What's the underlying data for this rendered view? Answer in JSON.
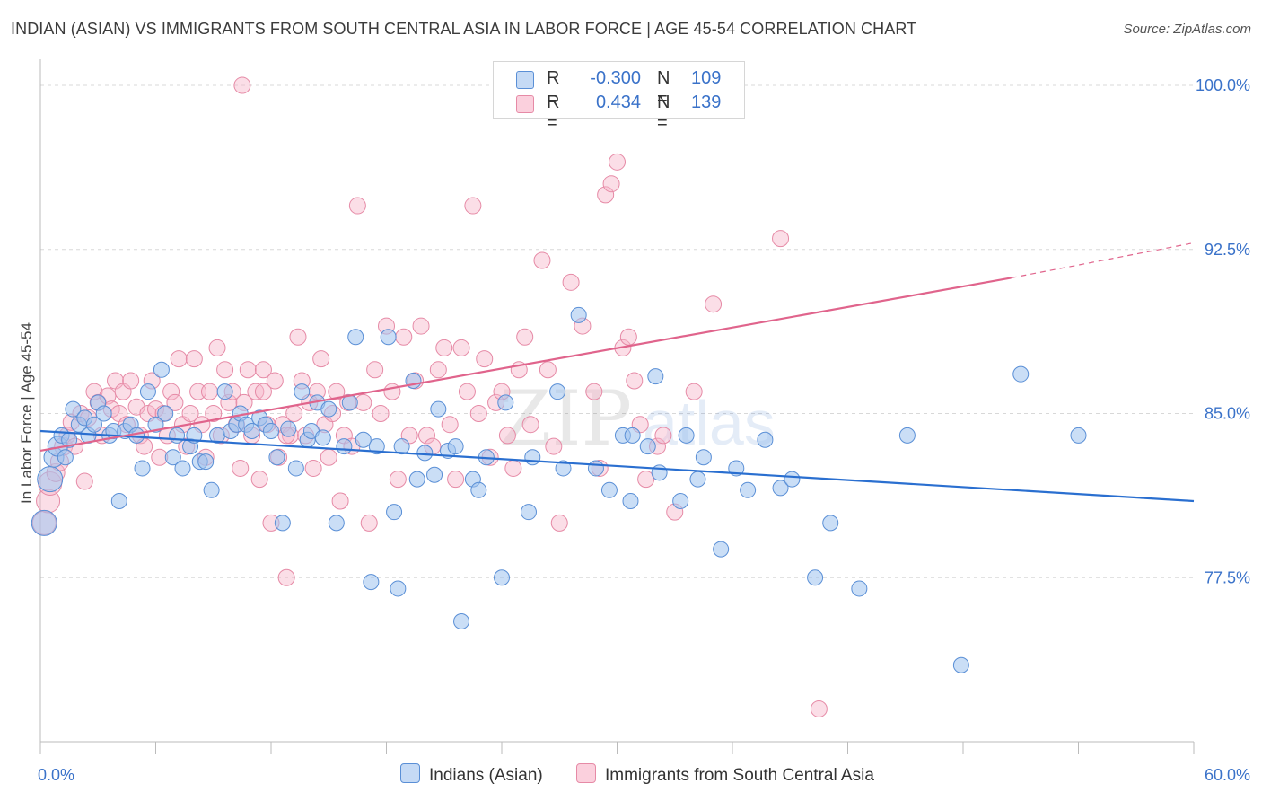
{
  "header": {
    "title": "INDIAN (ASIAN) VS IMMIGRANTS FROM SOUTH CENTRAL ASIA IN LABOR FORCE | AGE 45-54 CORRELATION CHART",
    "source": "Source: ZipAtlas.com"
  },
  "watermark": {
    "part1": "ZIP",
    "part2": "atlas"
  },
  "legend": {
    "series1": {
      "r_label": "R =",
      "r_value": "-0.300",
      "n_label": "N =",
      "n_value": "109"
    },
    "series2": {
      "r_label": "R =",
      "r_value": "0.434",
      "n_label": "N =",
      "n_value": "139"
    }
  },
  "bottom_legend": {
    "series1": "Indians (Asian)",
    "series2": "Immigrants from South Central Asia"
  },
  "colors": {
    "blue_fill": "#9fc3ef",
    "blue_stroke": "#5a8fd6",
    "blue_line": "#2a6fd0",
    "pink_fill": "#f6b6c9",
    "pink_stroke": "#e68aa6",
    "pink_line": "#e0648c",
    "tick_text": "#3a72c9",
    "grid": "#d8d8d8"
  },
  "chart_data": {
    "type": "scatter",
    "title": "INDIAN (ASIAN) VS IMMIGRANTS FROM SOUTH CENTRAL ASIA IN LABOR FORCE | AGE 45-54 CORRELATION CHART",
    "xlabel": "",
    "ylabel": "In Labor Force | Age 45-54",
    "x_tick_labels": [
      "0.0%",
      "60.0%"
    ],
    "y_tick_labels": [
      "77.5%",
      "85.0%",
      "92.5%",
      "100.0%"
    ],
    "y_ticks": [
      77.5,
      85.0,
      92.5,
      100.0
    ],
    "xlim": [
      0,
      60
    ],
    "ylim": [
      70,
      100.7
    ],
    "grid": "horizontal dashed",
    "legend_position": "top-center",
    "series": [
      {
        "name": "Indians (Asian)",
        "color": "#9fc3ef",
        "trend": {
          "x": [
            0,
            60
          ],
          "y": [
            84.2,
            81.0
          ]
        },
        "points": [
          [
            0.2,
            80.0
          ],
          [
            0.5,
            82.0
          ],
          [
            0.7,
            83.0
          ],
          [
            0.9,
            83.5
          ],
          [
            1.1,
            84.0
          ],
          [
            1.3,
            83.0
          ],
          [
            1.5,
            83.8
          ],
          [
            1.7,
            85.2
          ],
          [
            2.0,
            84.5
          ],
          [
            2.3,
            84.8
          ],
          [
            2.5,
            84.0
          ],
          [
            2.8,
            84.5
          ],
          [
            3.0,
            85.5
          ],
          [
            3.3,
            85.0
          ],
          [
            3.6,
            84.0
          ],
          [
            3.8,
            84.2
          ],
          [
            4.1,
            81.0
          ],
          [
            4.4,
            84.2
          ],
          [
            4.7,
            84.5
          ],
          [
            5.0,
            84.0
          ],
          [
            5.3,
            82.5
          ],
          [
            5.6,
            86.0
          ],
          [
            6.0,
            84.5
          ],
          [
            6.3,
            87.0
          ],
          [
            6.5,
            85.0
          ],
          [
            6.9,
            83.0
          ],
          [
            7.1,
            84.0
          ],
          [
            7.4,
            82.5
          ],
          [
            7.8,
            83.5
          ],
          [
            8.0,
            84.0
          ],
          [
            8.3,
            82.8
          ],
          [
            8.6,
            82.8
          ],
          [
            8.9,
            81.5
          ],
          [
            9.2,
            84.0
          ],
          [
            9.6,
            86.0
          ],
          [
            9.9,
            84.2
          ],
          [
            10.2,
            84.5
          ],
          [
            10.4,
            85.0
          ],
          [
            10.7,
            84.5
          ],
          [
            11.0,
            84.2
          ],
          [
            11.4,
            84.8
          ],
          [
            11.7,
            84.5
          ],
          [
            12.0,
            84.2
          ],
          [
            12.3,
            83.0
          ],
          [
            12.6,
            80.0
          ],
          [
            12.9,
            84.3
          ],
          [
            13.3,
            82.5
          ],
          [
            13.6,
            86.0
          ],
          [
            13.9,
            83.8
          ],
          [
            14.1,
            84.2
          ],
          [
            14.4,
            85.5
          ],
          [
            14.7,
            83.9
          ],
          [
            15.0,
            85.2
          ],
          [
            15.4,
            80.0
          ],
          [
            15.8,
            83.5
          ],
          [
            16.1,
            85.5
          ],
          [
            16.4,
            88.5
          ],
          [
            16.8,
            83.8
          ],
          [
            17.2,
            77.3
          ],
          [
            17.5,
            83.5
          ],
          [
            18.1,
            88.5
          ],
          [
            18.4,
            80.5
          ],
          [
            18.6,
            77.0
          ],
          [
            18.8,
            83.5
          ],
          [
            19.4,
            86.5
          ],
          [
            19.6,
            82.0
          ],
          [
            20.0,
            83.2
          ],
          [
            20.5,
            82.2
          ],
          [
            20.7,
            85.2
          ],
          [
            21.2,
            83.3
          ],
          [
            21.6,
            83.5
          ],
          [
            21.9,
            75.5
          ],
          [
            22.5,
            82.0
          ],
          [
            22.8,
            81.5
          ],
          [
            23.2,
            83.0
          ],
          [
            24.0,
            77.5
          ],
          [
            24.2,
            85.5
          ],
          [
            25.4,
            80.5
          ],
          [
            25.6,
            83.0
          ],
          [
            26.9,
            86.0
          ],
          [
            27.2,
            82.5
          ],
          [
            28.0,
            89.5
          ],
          [
            28.9,
            82.5
          ],
          [
            29.6,
            81.5
          ],
          [
            30.3,
            84.0
          ],
          [
            30.7,
            81.0
          ],
          [
            30.8,
            84.0
          ],
          [
            31.6,
            83.5
          ],
          [
            32.0,
            86.7
          ],
          [
            32.2,
            82.3
          ],
          [
            33.3,
            81.0
          ],
          [
            33.6,
            84.0
          ],
          [
            34.2,
            82.0
          ],
          [
            34.5,
            83.0
          ],
          [
            35.4,
            78.8
          ],
          [
            36.2,
            82.5
          ],
          [
            36.8,
            81.5
          ],
          [
            37.7,
            83.8
          ],
          [
            38.5,
            81.6
          ],
          [
            39.1,
            82.0
          ],
          [
            40.3,
            77.5
          ],
          [
            41.1,
            80.0
          ],
          [
            42.6,
            77.0
          ],
          [
            45.1,
            84.0
          ],
          [
            47.9,
            73.5
          ],
          [
            51.0,
            86.8
          ],
          [
            54.0,
            84.0
          ]
        ]
      },
      {
        "name": "Immigrants from South Central Asia",
        "color": "#f6b6c9",
        "trend": {
          "x": [
            0,
            50.5
          ],
          "y": [
            83.3,
            91.2
          ]
        },
        "trend_dashed": {
          "x": [
            50.5,
            60
          ],
          "y": [
            91.2,
            92.8
          ]
        },
        "points": [
          [
            0.2,
            80.0
          ],
          [
            0.4,
            81.0
          ],
          [
            0.5,
            81.8
          ],
          [
            0.8,
            82.3
          ],
          [
            1.0,
            82.8
          ],
          [
            1.2,
            83.5
          ],
          [
            1.4,
            84.0
          ],
          [
            1.6,
            84.6
          ],
          [
            1.8,
            83.5
          ],
          [
            2.1,
            85.0
          ],
          [
            2.3,
            81.9
          ],
          [
            2.5,
            84.8
          ],
          [
            2.8,
            86.0
          ],
          [
            3.0,
            85.5
          ],
          [
            3.2,
            84.0
          ],
          [
            3.5,
            85.8
          ],
          [
            3.7,
            85.2
          ],
          [
            3.9,
            86.5
          ],
          [
            4.1,
            85.0
          ],
          [
            4.3,
            86.0
          ],
          [
            4.5,
            84.5
          ],
          [
            4.7,
            86.5
          ],
          [
            5.0,
            85.3
          ],
          [
            5.2,
            84.0
          ],
          [
            5.4,
            83.5
          ],
          [
            5.6,
            85.0
          ],
          [
            5.8,
            86.5
          ],
          [
            6.0,
            85.2
          ],
          [
            6.2,
            83.0
          ],
          [
            6.4,
            85.0
          ],
          [
            6.6,
            84.0
          ],
          [
            6.8,
            86.0
          ],
          [
            7.0,
            85.5
          ],
          [
            7.2,
            87.5
          ],
          [
            7.4,
            84.5
          ],
          [
            7.6,
            83.5
          ],
          [
            7.8,
            85.0
          ],
          [
            8.0,
            87.5
          ],
          [
            8.2,
            86.0
          ],
          [
            8.4,
            84.5
          ],
          [
            8.6,
            83.0
          ],
          [
            8.8,
            86.0
          ],
          [
            9.0,
            85.0
          ],
          [
            9.2,
            88.0
          ],
          [
            9.4,
            84.0
          ],
          [
            9.6,
            87.0
          ],
          [
            9.8,
            85.5
          ],
          [
            10.0,
            86.0
          ],
          [
            10.2,
            84.5
          ],
          [
            10.4,
            82.5
          ],
          [
            10.6,
            85.5
          ],
          [
            10.8,
            87.0
          ],
          [
            11.0,
            84.0
          ],
          [
            11.2,
            86.0
          ],
          [
            11.4,
            82.0
          ],
          [
            11.6,
            87.0
          ],
          [
            11.8,
            84.5
          ],
          [
            12.0,
            80.0
          ],
          [
            12.2,
            86.5
          ],
          [
            12.4,
            83.0
          ],
          [
            12.6,
            84.5
          ],
          [
            12.8,
            77.5
          ],
          [
            13.0,
            84.0
          ],
          [
            13.2,
            85.0
          ],
          [
            13.4,
            88.5
          ],
          [
            13.6,
            86.5
          ],
          [
            13.8,
            84.0
          ],
          [
            14.0,
            85.5
          ],
          [
            14.2,
            82.5
          ],
          [
            14.4,
            86.0
          ],
          [
            14.6,
            87.5
          ],
          [
            14.8,
            84.5
          ],
          [
            15.0,
            83.0
          ],
          [
            15.2,
            85.0
          ],
          [
            15.4,
            86.0
          ],
          [
            15.6,
            81.0
          ],
          [
            15.8,
            84.0
          ],
          [
            16.0,
            85.5
          ],
          [
            16.2,
            83.5
          ],
          [
            16.5,
            94.5
          ],
          [
            16.8,
            85.5
          ],
          [
            17.1,
            80.0
          ],
          [
            17.4,
            87.0
          ],
          [
            17.7,
            85.0
          ],
          [
            18.0,
            89.0
          ],
          [
            18.3,
            86.0
          ],
          [
            18.6,
            82.0
          ],
          [
            18.9,
            88.5
          ],
          [
            19.2,
            84.0
          ],
          [
            19.5,
            86.5
          ],
          [
            19.8,
            89.0
          ],
          [
            20.1,
            84.0
          ],
          [
            20.4,
            83.5
          ],
          [
            20.7,
            87.0
          ],
          [
            21.0,
            88.0
          ],
          [
            21.3,
            84.5
          ],
          [
            21.6,
            82.0
          ],
          [
            21.9,
            88.0
          ],
          [
            22.2,
            86.0
          ],
          [
            22.5,
            94.5
          ],
          [
            22.8,
            85.0
          ],
          [
            23.1,
            87.5
          ],
          [
            23.4,
            83.0
          ],
          [
            23.7,
            85.5
          ],
          [
            24.0,
            86.0
          ],
          [
            24.3,
            84.0
          ],
          [
            24.6,
            82.5
          ],
          [
            24.9,
            87.0
          ],
          [
            25.2,
            88.5
          ],
          [
            25.5,
            84.5
          ],
          [
            26.1,
            92.0
          ],
          [
            26.4,
            87.0
          ],
          [
            26.7,
            83.5
          ],
          [
            27.0,
            80.0
          ],
          [
            27.6,
            91.0
          ],
          [
            28.2,
            89.0
          ],
          [
            28.8,
            86.0
          ],
          [
            29.1,
            82.5
          ],
          [
            29.4,
            95.0
          ],
          [
            29.7,
            95.5
          ],
          [
            30.0,
            96.5
          ],
          [
            30.3,
            88.0
          ],
          [
            30.6,
            88.5
          ],
          [
            30.9,
            86.5
          ],
          [
            31.2,
            84.5
          ],
          [
            31.5,
            82.0
          ],
          [
            32.1,
            83.5
          ],
          [
            32.4,
            84.0
          ],
          [
            33.0,
            80.5
          ],
          [
            34.0,
            86.0
          ],
          [
            35.0,
            90.0
          ],
          [
            38.5,
            93.0
          ],
          [
            40.5,
            71.5
          ],
          [
            10.5,
            100.0
          ],
          [
            11.6,
            86.0
          ],
          [
            12.8,
            84.0
          ]
        ]
      }
    ]
  }
}
